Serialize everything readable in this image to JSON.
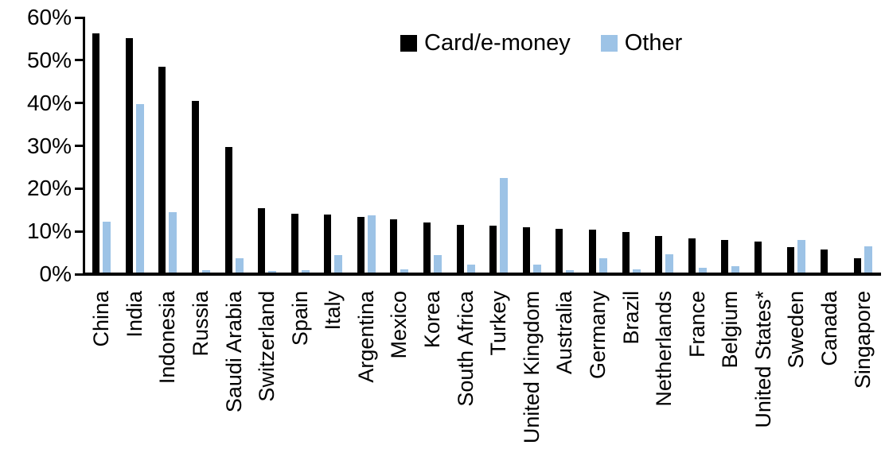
{
  "page": {
    "background": "#FFFFFF"
  },
  "chart_data": {
    "type": "bar",
    "title": "",
    "xlabel": "",
    "ylabel": "",
    "ylim": [
      0,
      60
    ],
    "ytick_step": 10,
    "ytick_labels": [
      "0%",
      "10%",
      "20%",
      "30%",
      "40%",
      "50%",
      "60%"
    ],
    "grid": false,
    "legend": {
      "position": "top-center"
    },
    "categories": [
      "China",
      "India",
      "Indonesia",
      "Russia",
      "Saudi Arabia",
      "Switzerland",
      "Spain",
      "Italy",
      "Argentina",
      "Mexico",
      "Korea",
      "South Africa",
      "Turkey",
      "United Kingdom",
      "Australia",
      "Germany",
      "Brazil",
      "Netherlands",
      "France",
      "Belgium",
      "United States*",
      "Sweden",
      "Canada",
      "Singapore"
    ],
    "series": [
      {
        "name": "Card/e-money",
        "color": "#000000",
        "values": [
          56.3,
          55.2,
          48.4,
          40.5,
          29.8,
          15.5,
          14.1,
          14.0,
          13.3,
          12.9,
          12.1,
          11.5,
          11.4,
          10.9,
          10.6,
          10.4,
          9.8,
          9.0,
          8.4,
          8.0,
          7.7,
          6.4,
          5.7,
          3.7
        ]
      },
      {
        "name": "Other",
        "color": "#9DC3E6",
        "values": [
          12.2,
          39.7,
          14.5,
          1.0,
          3.8,
          0.8,
          1.0,
          4.5,
          13.7,
          1.2,
          4.5,
          2.3,
          22.4,
          2.3,
          1.0,
          3.8,
          1.1,
          4.7,
          1.4,
          1.8,
          0.2,
          7.9,
          0.0,
          6.5
        ]
      }
    ]
  }
}
